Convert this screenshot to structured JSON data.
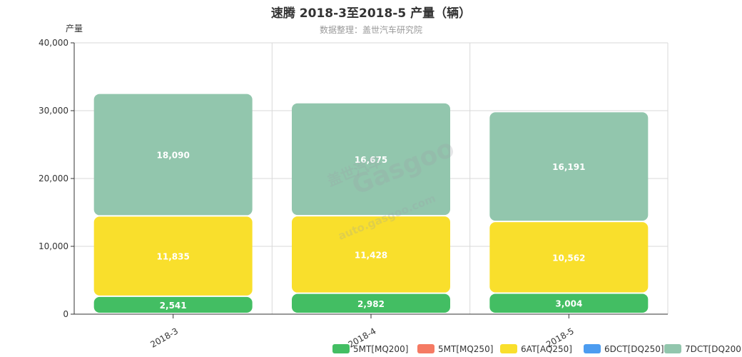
{
  "chart_data": {
    "type": "bar",
    "stacked": true,
    "title": "速腾 2018-3至2018-5 产量（辆）",
    "subtitle": "数据整理：盖世汽车研究院",
    "ylabel": "产量",
    "xlabel": "",
    "ylim": [
      0,
      40000
    ],
    "yticks": [
      0,
      10000,
      20000,
      30000,
      40000
    ],
    "ytick_labels": [
      "0",
      "10,000",
      "20,000",
      "30,000",
      "40,000"
    ],
    "categories": [
      "2018-3",
      "2018-4",
      "2018-5"
    ],
    "series": [
      {
        "name": "5MT[MQ200]",
        "color": "#43be63",
        "values": [
          2541,
          2982,
          3004
        ],
        "labels": [
          "2,541",
          "2,982",
          "3,004"
        ]
      },
      {
        "name": "5MT[MQ250]",
        "color": "#f57a63",
        "values": [
          0,
          0,
          0
        ],
        "labels": [
          "",
          "",
          ""
        ]
      },
      {
        "name": "6AT[AQ250]",
        "color": "#f9df2c",
        "values": [
          11835,
          11428,
          10562
        ],
        "labels": [
          "11,835",
          "11,428",
          "10,562"
        ]
      },
      {
        "name": "6DCT[DQ250]",
        "color": "#4c9cf0",
        "values": [
          0,
          0,
          0
        ],
        "labels": [
          "",
          "",
          ""
        ]
      },
      {
        "name": "7DCT[DQ200]",
        "color": "#92c6ad",
        "values": [
          18090,
          16675,
          16191
        ],
        "labels": [
          "18,090",
          "16,675",
          "16,191"
        ]
      }
    ],
    "grid": true,
    "legend_position": "bottom-right"
  },
  "watermark": {
    "brand_cn": "盖世汽车",
    "brand_en": "Gasgoo",
    "url": "auto.gasgoo.com"
  }
}
